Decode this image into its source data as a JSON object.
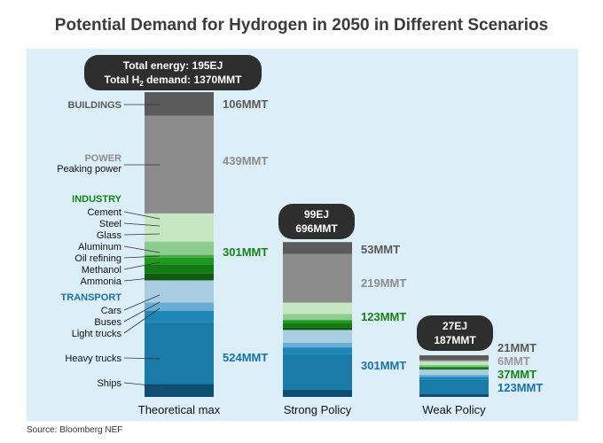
{
  "title": "Potential Demand for Hydrogen in 2050 in Different Scenarios",
  "source": "Source: Bloomberg NEF",
  "chart_data": {
    "type": "bar",
    "stacked": true,
    "categories": [
      "Theoretical max",
      "Strong Policy",
      "Weak Policy"
    ],
    "totals": [
      {
        "energy": "Total energy: 195EJ",
        "demand_prefix": "Total H",
        "demand_sub": "2",
        "demand_suffix": " demand: 1370MMT"
      },
      {
        "energy": "99EJ",
        "demand": "696MMT"
      },
      {
        "energy": "27EJ",
        "demand": "187MMT"
      }
    ],
    "series": [
      {
        "name": "TRANSPORT",
        "color": "#1a7aa8",
        "values": [
          524,
          301,
          123
        ],
        "labels": [
          "524MMT",
          "301MMT",
          "123MMT"
        ]
      },
      {
        "name": "INDUSTRY",
        "color": "#1a8a1a",
        "values": [
          301,
          123,
          37
        ],
        "labels": [
          "301MMT",
          "123MMT",
          "37MMT"
        ]
      },
      {
        "name": "POWER",
        "color": "#8c8c8c",
        "values": [
          439,
          219,
          6
        ],
        "labels": [
          "439MMT",
          "219MMT",
          "6MMT"
        ]
      },
      {
        "name": "BUILDINGS",
        "color": "#5a5a5a",
        "values": [
          106,
          53,
          21
        ],
        "labels": [
          "106MMT",
          "53MMT",
          "21MMT"
        ]
      }
    ],
    "sub_labels": {
      "BUILDINGS": [],
      "POWER": [
        "Peaking power"
      ],
      "INDUSTRY": [
        "Cement",
        "Steel",
        "Glass",
        "Aluminum",
        "Oil refining",
        "Methanol",
        "Ammonia"
      ],
      "TRANSPORT": [
        "Cars",
        "Buses",
        "Light trucks",
        "Heavy trucks",
        "Ships"
      ]
    },
    "sector_colors": {
      "BUILDINGS": "#5a5a5a",
      "POWER": "#8c8c8c",
      "INDUSTRY": "#1a8a1a",
      "TRANSPORT": "#1a7aa8"
    },
    "ymax": 1370
  }
}
